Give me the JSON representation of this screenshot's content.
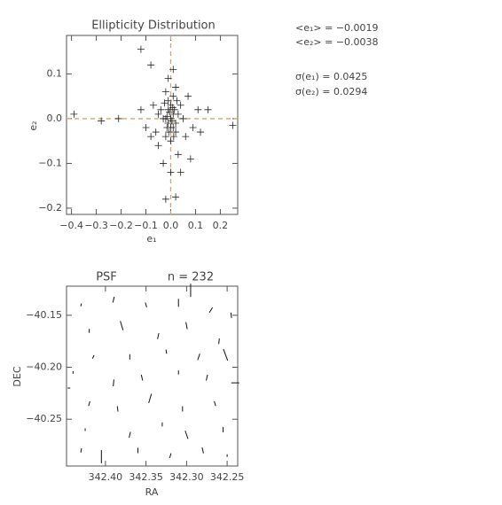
{
  "chart_data": [
    {
      "type": "scatter",
      "title": "Ellipticity Distribution",
      "xlabel": "e₁",
      "ylabel": "e₂",
      "annotations": [
        "<e₁> = −0.0019",
        "<e₂> = −0.0038",
        "σ(e₁) = 0.0425",
        "σ(e₂) = 0.0294"
      ],
      "xlim": [
        -0.42,
        0.27
      ],
      "ylim": [
        -0.214,
        0.186
      ],
      "xticks": [
        {
          "value": -0.4,
          "label": "−0.4"
        },
        {
          "value": -0.3,
          "label": "−0.3"
        },
        {
          "value": -0.2,
          "label": "−0.2"
        },
        {
          "value": -0.1,
          "label": "−0.1"
        },
        {
          "value": 0.0,
          "label": "0.0"
        },
        0.1,
        0.2
      ],
      "yticks": [
        {
          "value": -0.2,
          "label": "−0.2"
        },
        {
          "value": -0.1,
          "label": "−0.1"
        },
        {
          "value": 0.0,
          "label": "0.0"
        },
        0.1
      ],
      "reference_x": 0,
      "reference_y": 0,
      "reference_color": "#d9a46a",
      "color": "#222222",
      "x": [
        -0.12,
        -0.08,
        -0.39,
        -0.28,
        -0.21,
        0.25,
        0.15,
        0.11,
        0.08,
        0.02,
        -0.02,
        0.04,
        -0.05,
        -0.07,
        0.07,
        -0.1,
        0.09,
        -0.03,
        0.03,
        -0.02,
        0.02,
        -0.06,
        0.05,
        -0.04,
        0.04,
        -0.01,
        0.01,
        0.0,
        -0.02,
        0.02,
        -0.01,
        0.01,
        0.0,
        -0.01,
        0.02,
        -0.02,
        0.0,
        0.01,
        -0.005,
        0.005,
        0.015,
        -0.015,
        0.0,
        0.03,
        -0.03,
        -0.08,
        0.06,
        -0.05,
        0.12,
        -0.12,
        0.01,
        -0.01,
        0.0,
        -0.015,
        0.008,
        -0.008,
        0.012,
        0.025,
        -0.025
      ],
      "y": [
        0.155,
        0.12,
        0.01,
        -0.005,
        0.0,
        -0.015,
        0.02,
        0.02,
        -0.09,
        -0.175,
        -0.18,
        -0.12,
        -0.06,
        0.03,
        0.05,
        -0.02,
        -0.02,
        -0.1,
        -0.08,
        0.06,
        0.07,
        -0.03,
        0.0,
        0.02,
        0.03,
        0.04,
        0.05,
        -0.05,
        -0.04,
        -0.03,
        0.02,
        0.01,
        0.0,
        -0.01,
        -0.01,
        0.0,
        0.03,
        -0.02,
        0.015,
        -0.005,
        0.02,
        -0.02,
        -0.02,
        0.01,
        0.0,
        -0.04,
        -0.04,
        0.01,
        -0.03,
        0.02,
        0.11,
        0.09,
        -0.12,
        0.005,
        0.025,
        -0.03,
        -0.04,
        0.04,
        0.035
      ]
    },
    {
      "type": "whisker",
      "title": "PSF",
      "subtitle": "n = 232",
      "xlabel": "RA",
      "ylabel": "DEC",
      "color": "#111111",
      "xlim": [
        342.448,
        342.237
      ],
      "ylim": [
        -40.295,
        -40.122
      ],
      "xticks": [
        {
          "value": 342.4,
          "label": "342.40"
        },
        342.35,
        {
          "value": 342.3,
          "label": "342.30"
        },
        342.25
      ],
      "yticks": [
        {
          "value": -40.15,
          "label": "−40.15"
        },
        {
          "value": -40.2,
          "label": "−40.20"
        },
        {
          "value": -40.25,
          "label": "−40.25"
        }
      ],
      "x": [
        342.43,
        342.39,
        342.35,
        342.31,
        342.295,
        342.27,
        342.245,
        342.42,
        342.38,
        342.335,
        342.3,
        342.26,
        342.415,
        342.37,
        342.325,
        342.285,
        342.252,
        342.44,
        342.39,
        342.355,
        342.31,
        342.275,
        342.24,
        342.42,
        342.385,
        342.345,
        342.305,
        342.265,
        342.425,
        342.37,
        342.33,
        342.3,
        342.255,
        342.43,
        342.405,
        342.36,
        342.32,
        342.28,
        342.25,
        342.445
      ],
      "y": [
        -40.14,
        -40.135,
        -40.14,
        -40.138,
        -40.126,
        -40.145,
        -40.15,
        -40.165,
        -40.16,
        -40.17,
        -40.16,
        -40.175,
        -40.19,
        -40.19,
        -40.185,
        -40.19,
        -40.188,
        -40.205,
        -40.215,
        -40.21,
        -40.205,
        -40.21,
        -40.215,
        -40.235,
        -40.24,
        -40.23,
        -40.24,
        -40.235,
        -40.26,
        -40.265,
        -40.255,
        -40.265,
        -40.26,
        -40.28,
        -40.286,
        -40.28,
        -40.285,
        -40.28,
        -40.285,
        -40.22
      ],
      "e1": [
        -0.01,
        -0.02,
        -0.015,
        -0.03,
        -0.05,
        -0.01,
        -0.02,
        -0.015,
        -0.03,
        -0.02,
        -0.025,
        -0.02,
        -0.01,
        -0.02,
        -0.015,
        -0.02,
        -0.035,
        -0.01,
        -0.025,
        -0.02,
        -0.015,
        -0.02,
        0.03,
        -0.015,
        -0.02,
        -0.03,
        -0.02,
        -0.015,
        -0.01,
        -0.02,
        -0.015,
        -0.025,
        -0.02,
        -0.015,
        -0.05,
        -0.02,
        -0.015,
        -0.02,
        -0.01,
        0.01
      ],
      "e2": [
        0.005,
        0.01,
        -0.01,
        0.0,
        0.0,
        0.02,
        -0.005,
        0.0,
        -0.02,
        0.01,
        -0.01,
        0.005,
        0.01,
        0.0,
        -0.005,
        0.015,
        -0.03,
        0.0,
        0.005,
        -0.01,
        0.0,
        0.01,
        0.0,
        0.01,
        -0.005,
        0.02,
        0.0,
        -0.01,
        0.0,
        0.01,
        0.0,
        -0.02,
        0.0,
        0.005,
        0.0,
        0.0,
        0.01,
        -0.01,
        0.0,
        0.0
      ]
    }
  ]
}
